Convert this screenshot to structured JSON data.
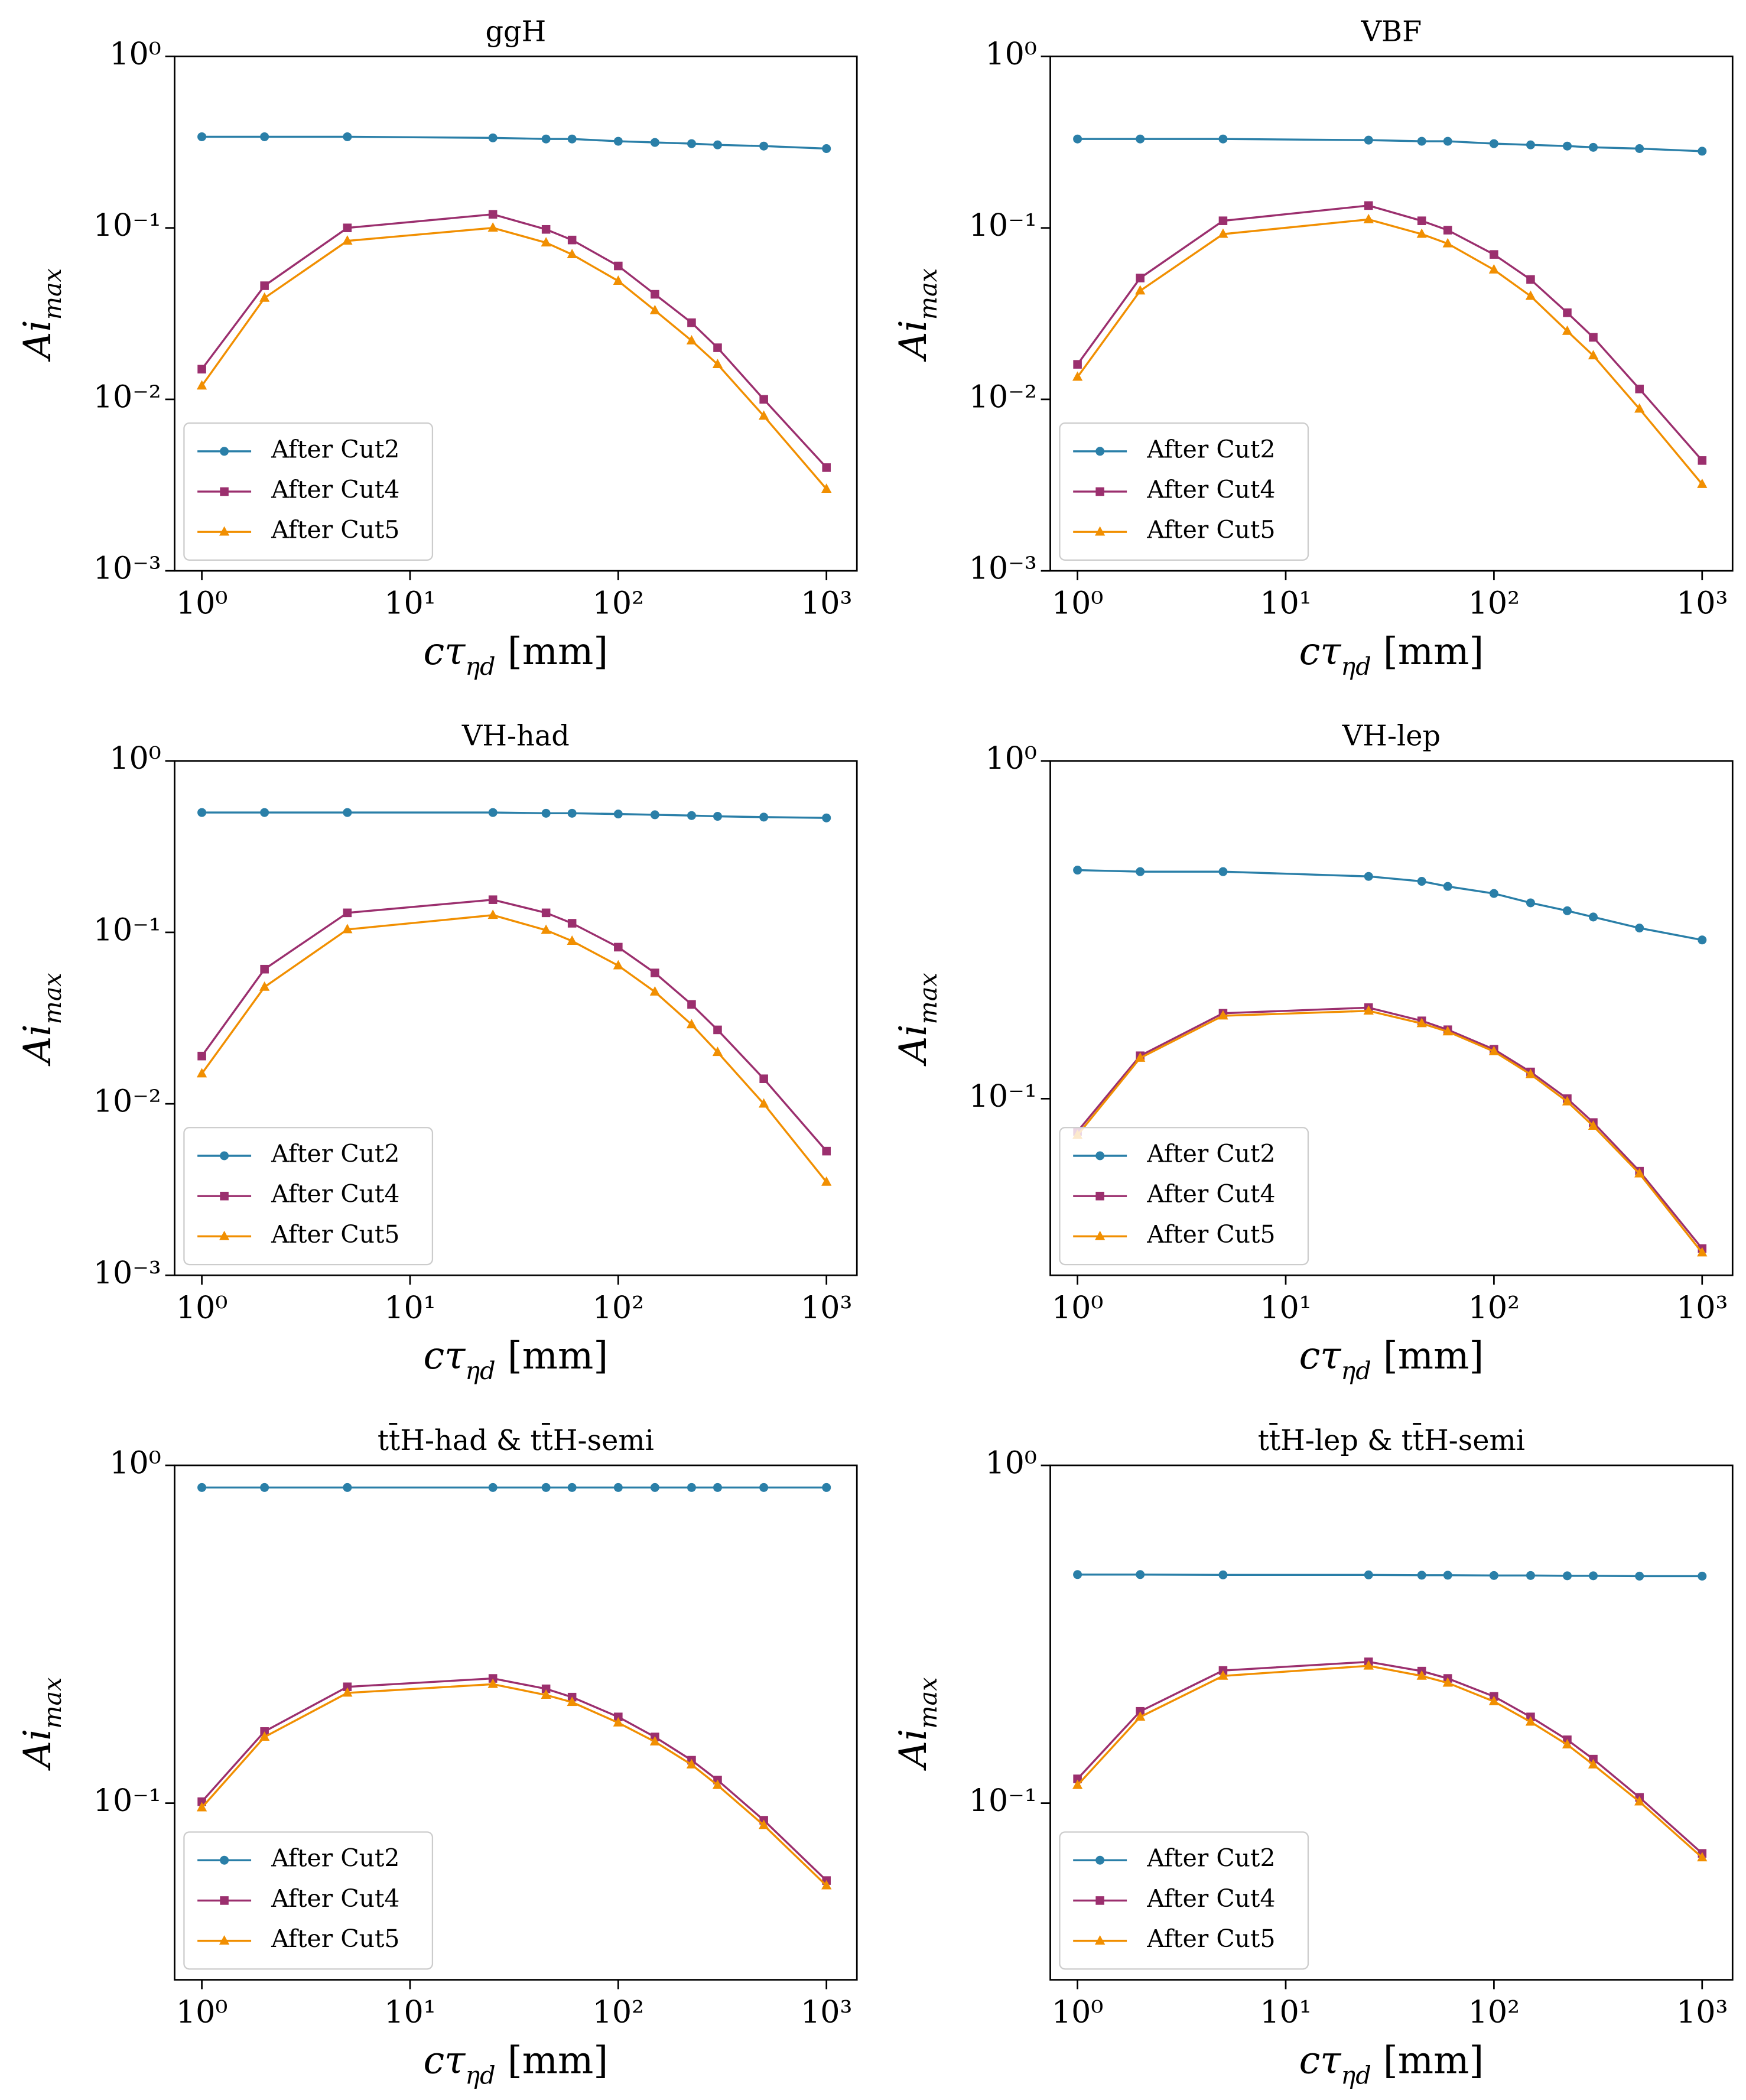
{
  "chart_data": [
    {
      "type": "line",
      "title": "ggH",
      "x_label": "cτ_ηd [mm]",
      "y_label": "Ai_max",
      "x": [
        1,
        2,
        5,
        25,
        45,
        60,
        100,
        150,
        225,
        300,
        500,
        1000
      ],
      "xscale": "log",
      "yscale": "log",
      "xlim": [
        0.74,
        1400
      ],
      "ylim": [
        0.001,
        1
      ],
      "xticks": [
        {
          "value": 1,
          "label": "10⁰"
        },
        {
          "value": 10,
          "label": "10¹"
        },
        {
          "value": 100,
          "label": "10²"
        },
        {
          "value": 1000,
          "label": "10³"
        }
      ],
      "yticks": [
        {
          "value": 0.001,
          "label": "10⁻³"
        },
        {
          "value": 0.01,
          "label": "10⁻²"
        },
        {
          "value": 0.1,
          "label": "10⁻¹"
        },
        {
          "value": 1,
          "label": "10⁰"
        }
      ],
      "legend": "lower left",
      "series": [
        {
          "name": "After Cut2",
          "color": "#2a7fa8",
          "marker": "circle",
          "values": [
            0.34,
            0.34,
            0.34,
            0.335,
            0.33,
            0.33,
            0.32,
            0.315,
            0.31,
            0.305,
            0.3,
            0.29
          ]
        },
        {
          "name": "After Cut4",
          "color": "#9b2f6e",
          "marker": "square",
          "values": [
            0.015,
            0.046,
            0.1,
            0.12,
            0.098,
            0.085,
            0.06,
            0.041,
            0.028,
            0.02,
            0.01,
            0.004
          ]
        },
        {
          "name": "After Cut5",
          "color": "#f18f01",
          "marker": "triangle",
          "values": [
            0.012,
            0.039,
            0.084,
            0.1,
            0.082,
            0.07,
            0.049,
            0.033,
            0.022,
            0.016,
            0.008,
            0.003
          ]
        }
      ]
    },
    {
      "type": "line",
      "title": "VBF",
      "x_label": "cτ_ηd [mm]",
      "y_label": "Ai_max",
      "x": [
        1,
        2,
        5,
        25,
        45,
        60,
        100,
        150,
        225,
        300,
        500,
        1000
      ],
      "xscale": "log",
      "yscale": "log",
      "xlim": [
        0.74,
        1400
      ],
      "ylim": [
        0.001,
        1
      ],
      "xticks": [
        {
          "value": 1,
          "label": "10⁰"
        },
        {
          "value": 10,
          "label": "10¹"
        },
        {
          "value": 100,
          "label": "10²"
        },
        {
          "value": 1000,
          "label": "10³"
        }
      ],
      "yticks": [
        {
          "value": 0.001,
          "label": "10⁻³"
        },
        {
          "value": 0.01,
          "label": "10⁻²"
        },
        {
          "value": 0.1,
          "label": "10⁻¹"
        },
        {
          "value": 1,
          "label": "10⁰"
        }
      ],
      "legend": "lower left",
      "series": [
        {
          "name": "After Cut2",
          "color": "#2a7fa8",
          "marker": "circle",
          "values": [
            0.33,
            0.33,
            0.33,
            0.325,
            0.32,
            0.32,
            0.31,
            0.305,
            0.3,
            0.295,
            0.29,
            0.28
          ]
        },
        {
          "name": "After Cut4",
          "color": "#9b2f6e",
          "marker": "square",
          "values": [
            0.016,
            0.051,
            0.11,
            0.135,
            0.11,
            0.097,
            0.07,
            0.05,
            0.032,
            0.023,
            0.0115,
            0.0044
          ]
        },
        {
          "name": "After Cut5",
          "color": "#f18f01",
          "marker": "triangle",
          "values": [
            0.0135,
            0.043,
            0.092,
            0.112,
            0.092,
            0.081,
            0.057,
            0.04,
            0.025,
            0.018,
            0.0088,
            0.0032
          ]
        }
      ]
    },
    {
      "type": "line",
      "title": "VH-had",
      "x_label": "cτ_ηd [mm]",
      "y_label": "Ai_max",
      "x": [
        1,
        2,
        5,
        25,
        45,
        60,
        100,
        150,
        225,
        300,
        500,
        1000
      ],
      "xscale": "log",
      "yscale": "log",
      "xlim": [
        0.74,
        1400
      ],
      "ylim": [
        0.001,
        1
      ],
      "xticks": [
        {
          "value": 1,
          "label": "10⁰"
        },
        {
          "value": 10,
          "label": "10¹"
        },
        {
          "value": 100,
          "label": "10²"
        },
        {
          "value": 1000,
          "label": "10³"
        }
      ],
      "yticks": [
        {
          "value": 0.001,
          "label": "10⁻³"
        },
        {
          "value": 0.01,
          "label": "10⁻²"
        },
        {
          "value": 0.1,
          "label": "10⁻¹"
        },
        {
          "value": 1,
          "label": "10⁰"
        }
      ],
      "legend": "lower left",
      "series": [
        {
          "name": "After Cut2",
          "color": "#2a7fa8",
          "marker": "circle",
          "values": [
            0.5,
            0.5,
            0.5,
            0.5,
            0.495,
            0.495,
            0.49,
            0.485,
            0.48,
            0.475,
            0.47,
            0.465
          ]
        },
        {
          "name": "After Cut4",
          "color": "#9b2f6e",
          "marker": "square",
          "values": [
            0.019,
            0.061,
            0.13,
            0.155,
            0.13,
            0.113,
            0.082,
            0.058,
            0.038,
            0.027,
            0.014,
            0.0053
          ]
        },
        {
          "name": "After Cut5",
          "color": "#f18f01",
          "marker": "triangle",
          "values": [
            0.015,
            0.048,
            0.104,
            0.126,
            0.103,
            0.089,
            0.064,
            0.045,
            0.029,
            0.02,
            0.01,
            0.0035
          ]
        }
      ]
    },
    {
      "type": "line",
      "title": "VH-lep",
      "x_label": "cτ_ηd [mm]",
      "y_label": "Ai_max",
      "x": [
        1,
        2,
        5,
        25,
        45,
        60,
        100,
        150,
        225,
        300,
        500,
        1000
      ],
      "xscale": "log",
      "yscale": "log",
      "xlim": [
        0.74,
        1400
      ],
      "ylim": [
        0.03,
        1
      ],
      "xticks": [
        {
          "value": 1,
          "label": "10⁰"
        },
        {
          "value": 10,
          "label": "10¹"
        },
        {
          "value": 100,
          "label": "10²"
        },
        {
          "value": 1000,
          "label": "10³"
        }
      ],
      "yticks": [
        {
          "value": 0.1,
          "label": "10⁻¹"
        },
        {
          "value": 1,
          "label": "10⁰"
        }
      ],
      "legend": "lower left",
      "series": [
        {
          "name": "After Cut2",
          "color": "#2a7fa8",
          "marker": "circle",
          "values": [
            0.475,
            0.47,
            0.47,
            0.455,
            0.44,
            0.425,
            0.405,
            0.38,
            0.36,
            0.345,
            0.32,
            0.295
          ]
        },
        {
          "name": "After Cut4",
          "color": "#9b2f6e",
          "marker": "square",
          "values": [
            0.08,
            0.134,
            0.179,
            0.186,
            0.17,
            0.16,
            0.14,
            0.12,
            0.1,
            0.085,
            0.061,
            0.036
          ]
        },
        {
          "name": "After Cut5",
          "color": "#f18f01",
          "marker": "triangle",
          "values": [
            0.078,
            0.132,
            0.176,
            0.182,
            0.167,
            0.158,
            0.138,
            0.118,
            0.098,
            0.083,
            0.06,
            0.035
          ]
        }
      ]
    },
    {
      "type": "line",
      "title": "tt̄H-had & tt̄H-semi",
      "x_label": "cτ_ηd [mm]",
      "y_label": "Ai_max",
      "x": [
        1,
        2,
        5,
        25,
        45,
        60,
        100,
        150,
        225,
        300,
        500,
        1000
      ],
      "xscale": "log",
      "yscale": "log",
      "xlim": [
        0.74,
        1400
      ],
      "ylim": [
        0.03,
        1
      ],
      "xticks": [
        {
          "value": 1,
          "label": "10⁰"
        },
        {
          "value": 10,
          "label": "10¹"
        },
        {
          "value": 100,
          "label": "10²"
        },
        {
          "value": 1000,
          "label": "10³"
        }
      ],
      "yticks": [
        {
          "value": 0.1,
          "label": "10⁻¹"
        },
        {
          "value": 1,
          "label": "10⁰"
        }
      ],
      "legend": "lower left",
      "series": [
        {
          "name": "After Cut2",
          "color": "#2a7fa8",
          "marker": "circle",
          "values": [
            0.86,
            0.86,
            0.86,
            0.86,
            0.86,
            0.86,
            0.86,
            0.86,
            0.86,
            0.86,
            0.86,
            0.86
          ]
        },
        {
          "name": "After Cut4",
          "color": "#9b2f6e",
          "marker": "square",
          "values": [
            0.101,
            0.163,
            0.221,
            0.234,
            0.218,
            0.206,
            0.18,
            0.157,
            0.134,
            0.117,
            0.089,
            0.059
          ]
        },
        {
          "name": "After Cut5",
          "color": "#f18f01",
          "marker": "triangle",
          "values": [
            0.097,
            0.157,
            0.212,
            0.225,
            0.209,
            0.199,
            0.173,
            0.152,
            0.13,
            0.113,
            0.086,
            0.057
          ]
        }
      ]
    },
    {
      "type": "line",
      "title": "tt̄H-lep & tt̄H-semi",
      "x_label": "cτ_ηd [mm]",
      "y_label": "Ai_max",
      "x": [
        1,
        2,
        5,
        25,
        45,
        60,
        100,
        150,
        225,
        300,
        500,
        1000
      ],
      "xscale": "log",
      "yscale": "log",
      "xlim": [
        0.74,
        1400
      ],
      "ylim": [
        0.03,
        1
      ],
      "xticks": [
        {
          "value": 1,
          "label": "10⁰"
        },
        {
          "value": 10,
          "label": "10¹"
        },
        {
          "value": 100,
          "label": "10²"
        },
        {
          "value": 1000,
          "label": "10³"
        }
      ],
      "yticks": [
        {
          "value": 0.1,
          "label": "10⁻¹"
        },
        {
          "value": 1,
          "label": "10⁰"
        }
      ],
      "legend": "lower left",
      "series": [
        {
          "name": "After Cut2",
          "color": "#2a7fa8",
          "marker": "circle",
          "values": [
            0.475,
            0.475,
            0.474,
            0.474,
            0.473,
            0.473,
            0.472,
            0.472,
            0.471,
            0.471,
            0.47,
            0.47
          ]
        },
        {
          "name": "After Cut4",
          "color": "#9b2f6e",
          "marker": "square",
          "values": [
            0.118,
            0.187,
            0.247,
            0.262,
            0.246,
            0.234,
            0.207,
            0.18,
            0.154,
            0.135,
            0.104,
            0.071
          ]
        },
        {
          "name": "After Cut5",
          "color": "#f18f01",
          "marker": "triangle",
          "values": [
            0.113,
            0.18,
            0.238,
            0.255,
            0.238,
            0.227,
            0.2,
            0.174,
            0.149,
            0.13,
            0.101,
            0.069
          ]
        }
      ]
    }
  ]
}
